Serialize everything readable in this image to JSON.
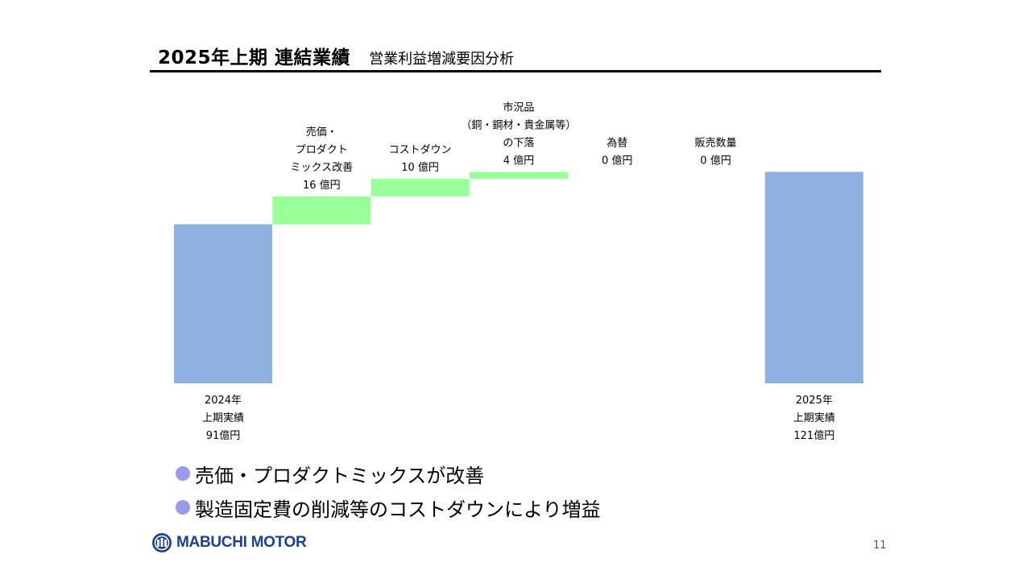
{
  "header": {
    "title": "2025年上期 連結業績",
    "subtitle": "営業利益増減要因分析"
  },
  "chart_data": {
    "type": "waterfall",
    "unit": "億円",
    "colors": {
      "total": "#8eb0e0",
      "increase": "#99ff99"
    },
    "items": [
      {
        "kind": "total",
        "value": 91,
        "label_lines": [
          "2024年",
          "上期実績",
          "91億円"
        ]
      },
      {
        "kind": "increase",
        "value": 16,
        "label_lines": [
          "売価・",
          "プロダクト",
          "ミックス改善",
          "16 億円"
        ]
      },
      {
        "kind": "increase",
        "value": 10,
        "label_lines": [
          "コストダウン",
          "10 億円"
        ]
      },
      {
        "kind": "increase",
        "value": 4,
        "label_lines": [
          "市況品",
          "（銅・鋼材・貴金属等）",
          "の下落",
          "4 億円"
        ]
      },
      {
        "kind": "increase",
        "value": 0,
        "label_lines": [
          "為替",
          "0 億円"
        ]
      },
      {
        "kind": "increase",
        "value": 0,
        "label_lines": [
          "販売数量",
          "0 億円"
        ]
      },
      {
        "kind": "total",
        "value": 121,
        "label_lines": [
          "2025年",
          "上期実績",
          "121億円"
        ]
      }
    ]
  },
  "bullets": [
    "売価・プロダクトミックスが改善",
    "製造固定費の削減等のコストダウンにより増益"
  ],
  "footer": {
    "logo_text": "MABUCHI MOTOR",
    "page_number": "11"
  }
}
